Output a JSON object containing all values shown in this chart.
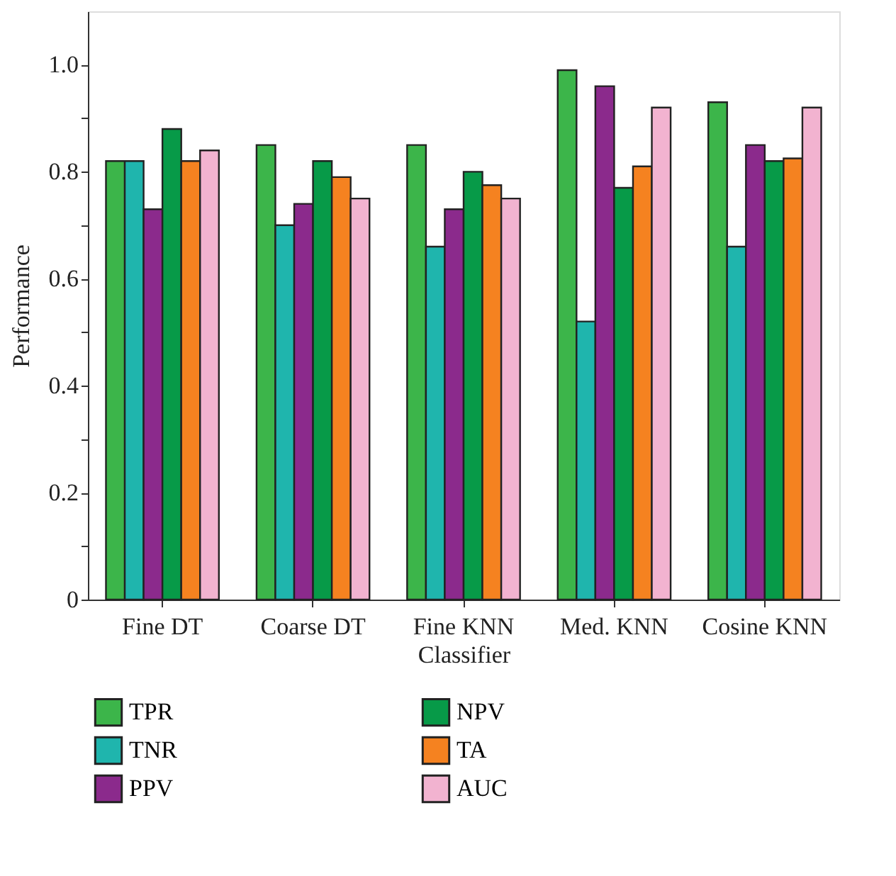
{
  "chart_data": {
    "type": "bar",
    "xlabel": "Classifier",
    "ylabel": "Performance",
    "categories": [
      "Fine DT",
      "Coarse DT",
      "Fine KNN",
      "Med. KNN",
      "Cosine KNN"
    ],
    "series": [
      {
        "name": "TPR",
        "color": "#3cb54a",
        "values": [
          0.82,
          0.85,
          0.85,
          0.99,
          0.93
        ]
      },
      {
        "name": "TNR",
        "color": "#1fb5ad",
        "values": [
          0.82,
          0.7,
          0.66,
          0.52,
          0.66
        ]
      },
      {
        "name": "PPV",
        "color": "#8b2a8c",
        "values": [
          0.73,
          0.74,
          0.73,
          0.96,
          0.85
        ]
      },
      {
        "name": "NPV",
        "color": "#079a48",
        "values": [
          0.88,
          0.82,
          0.8,
          0.77,
          0.82
        ]
      },
      {
        "name": "TA",
        "color": "#f58220",
        "values": [
          0.82,
          0.79,
          0.775,
          0.81,
          0.825
        ]
      },
      {
        "name": "AUC",
        "color": "#f2b3d0",
        "values": [
          0.84,
          0.75,
          0.75,
          0.92,
          0.92
        ]
      }
    ],
    "ylim": [
      0,
      1.1
    ],
    "yticks": [
      0,
      {
        "value": 0.1,
        "label": null
      },
      0.2,
      {
        "value": 0.3,
        "label": null
      },
      0.4,
      {
        "value": 0.5,
        "label": null
      },
      0.6,
      {
        "value": 0.7,
        "label": null
      },
      0.8,
      {
        "value": 0.9,
        "label": null
      },
      {
        "value": 1,
        "label": "1.0"
      }
    ],
    "grid": false,
    "legend": "bottom"
  }
}
